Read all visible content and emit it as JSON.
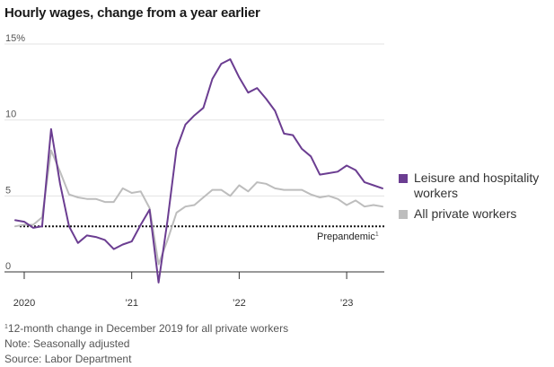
{
  "title": "Hourly wages, change from a year earlier",
  "chart_data": {
    "type": "line",
    "title": "Hourly wages, change from a year earlier",
    "xlabel": "",
    "ylabel": "",
    "x_range": [
      "2019-12",
      "2023-05"
    ],
    "ylim": [
      -1,
      15.5
    ],
    "y_ticks": [
      {
        "value": 15,
        "label": "15%"
      },
      {
        "value": 10,
        "label": "10"
      },
      {
        "value": 5,
        "label": "5"
      },
      {
        "value": 0,
        "label": "0"
      }
    ],
    "x_ticks": [
      {
        "value": "2020-01",
        "label": "2020"
      },
      {
        "value": "2021-01",
        "label": "’21"
      },
      {
        "value": "2022-01",
        "label": "’22"
      },
      {
        "value": "2023-01",
        "label": "’23"
      }
    ],
    "grid": true,
    "legend_position": "right",
    "reference_line": {
      "value": 3.0,
      "label": "Prepandemic",
      "footnote_mark": "1"
    },
    "series": [
      {
        "name": "Leisure and hospitality workers",
        "color": "#6b3d91",
        "points": [
          [
            "2019-12",
            3.4
          ],
          [
            "2020-01",
            3.3
          ],
          [
            "2020-02",
            2.9
          ],
          [
            "2020-03",
            3.0
          ],
          [
            "2020-04",
            9.4
          ],
          [
            "2020-05",
            5.8
          ],
          [
            "2020-06",
            3.0
          ],
          [
            "2020-07",
            1.9
          ],
          [
            "2020-08",
            2.4
          ],
          [
            "2020-09",
            2.3
          ],
          [
            "2020-10",
            2.1
          ],
          [
            "2020-11",
            1.5
          ],
          [
            "2020-12",
            1.8
          ],
          [
            "2021-01",
            2.0
          ],
          [
            "2021-02",
            3.1
          ],
          [
            "2021-03",
            4.1
          ],
          [
            "2021-04",
            -0.7
          ],
          [
            "2021-05",
            3.4
          ],
          [
            "2021-06",
            8.1
          ],
          [
            "2021-07",
            9.7
          ],
          [
            "2021-08",
            10.3
          ],
          [
            "2021-09",
            10.8
          ],
          [
            "2021-10",
            12.7
          ],
          [
            "2021-11",
            13.7
          ],
          [
            "2021-12",
            14.0
          ],
          [
            "2022-01",
            12.8
          ],
          [
            "2022-02",
            11.8
          ],
          [
            "2022-03",
            12.1
          ],
          [
            "2022-04",
            11.4
          ],
          [
            "2022-05",
            10.6
          ],
          [
            "2022-06",
            9.1
          ],
          [
            "2022-07",
            9.0
          ],
          [
            "2022-08",
            8.1
          ],
          [
            "2022-09",
            7.6
          ],
          [
            "2022-10",
            6.4
          ],
          [
            "2022-11",
            6.5
          ],
          [
            "2022-12",
            6.6
          ],
          [
            "2023-01",
            7.0
          ],
          [
            "2023-02",
            6.7
          ],
          [
            "2023-03",
            5.9
          ],
          [
            "2023-04",
            5.7
          ],
          [
            "2023-05",
            5.5
          ]
        ]
      },
      {
        "name": "All private workers",
        "color": "#bdbdbd",
        "points": [
          [
            "2019-12",
            3.0
          ],
          [
            "2020-01",
            3.1
          ],
          [
            "2020-02",
            3.1
          ],
          [
            "2020-03",
            3.6
          ],
          [
            "2020-04",
            8.0
          ],
          [
            "2020-05",
            6.6
          ],
          [
            "2020-06",
            5.1
          ],
          [
            "2020-07",
            4.9
          ],
          [
            "2020-08",
            4.8
          ],
          [
            "2020-09",
            4.8
          ],
          [
            "2020-10",
            4.6
          ],
          [
            "2020-11",
            4.6
          ],
          [
            "2020-12",
            5.5
          ],
          [
            "2021-01",
            5.2
          ],
          [
            "2021-02",
            5.3
          ],
          [
            "2021-03",
            4.2
          ],
          [
            "2021-04",
            0.5
          ],
          [
            "2021-05",
            2.1
          ],
          [
            "2021-06",
            3.9
          ],
          [
            "2021-07",
            4.3
          ],
          [
            "2021-08",
            4.4
          ],
          [
            "2021-09",
            4.9
          ],
          [
            "2021-10",
            5.4
          ],
          [
            "2021-11",
            5.4
          ],
          [
            "2021-12",
            5.0
          ],
          [
            "2022-01",
            5.7
          ],
          [
            "2022-02",
            5.3
          ],
          [
            "2022-03",
            5.9
          ],
          [
            "2022-04",
            5.8
          ],
          [
            "2022-05",
            5.5
          ],
          [
            "2022-06",
            5.4
          ],
          [
            "2022-07",
            5.4
          ],
          [
            "2022-08",
            5.4
          ],
          [
            "2022-09",
            5.1
          ],
          [
            "2022-10",
            4.9
          ],
          [
            "2022-11",
            5.0
          ],
          [
            "2022-12",
            4.8
          ],
          [
            "2023-01",
            4.4
          ],
          [
            "2023-02",
            4.7
          ],
          [
            "2023-03",
            4.3
          ],
          [
            "2023-04",
            4.4
          ],
          [
            "2023-05",
            4.3
          ]
        ]
      }
    ]
  },
  "notes": {
    "footnote_mark": "1",
    "footnote_text": "12-month change in December 2019 for all private workers",
    "adjustment": "Note: Seasonally adjusted",
    "source": "Source: Labor Department"
  }
}
